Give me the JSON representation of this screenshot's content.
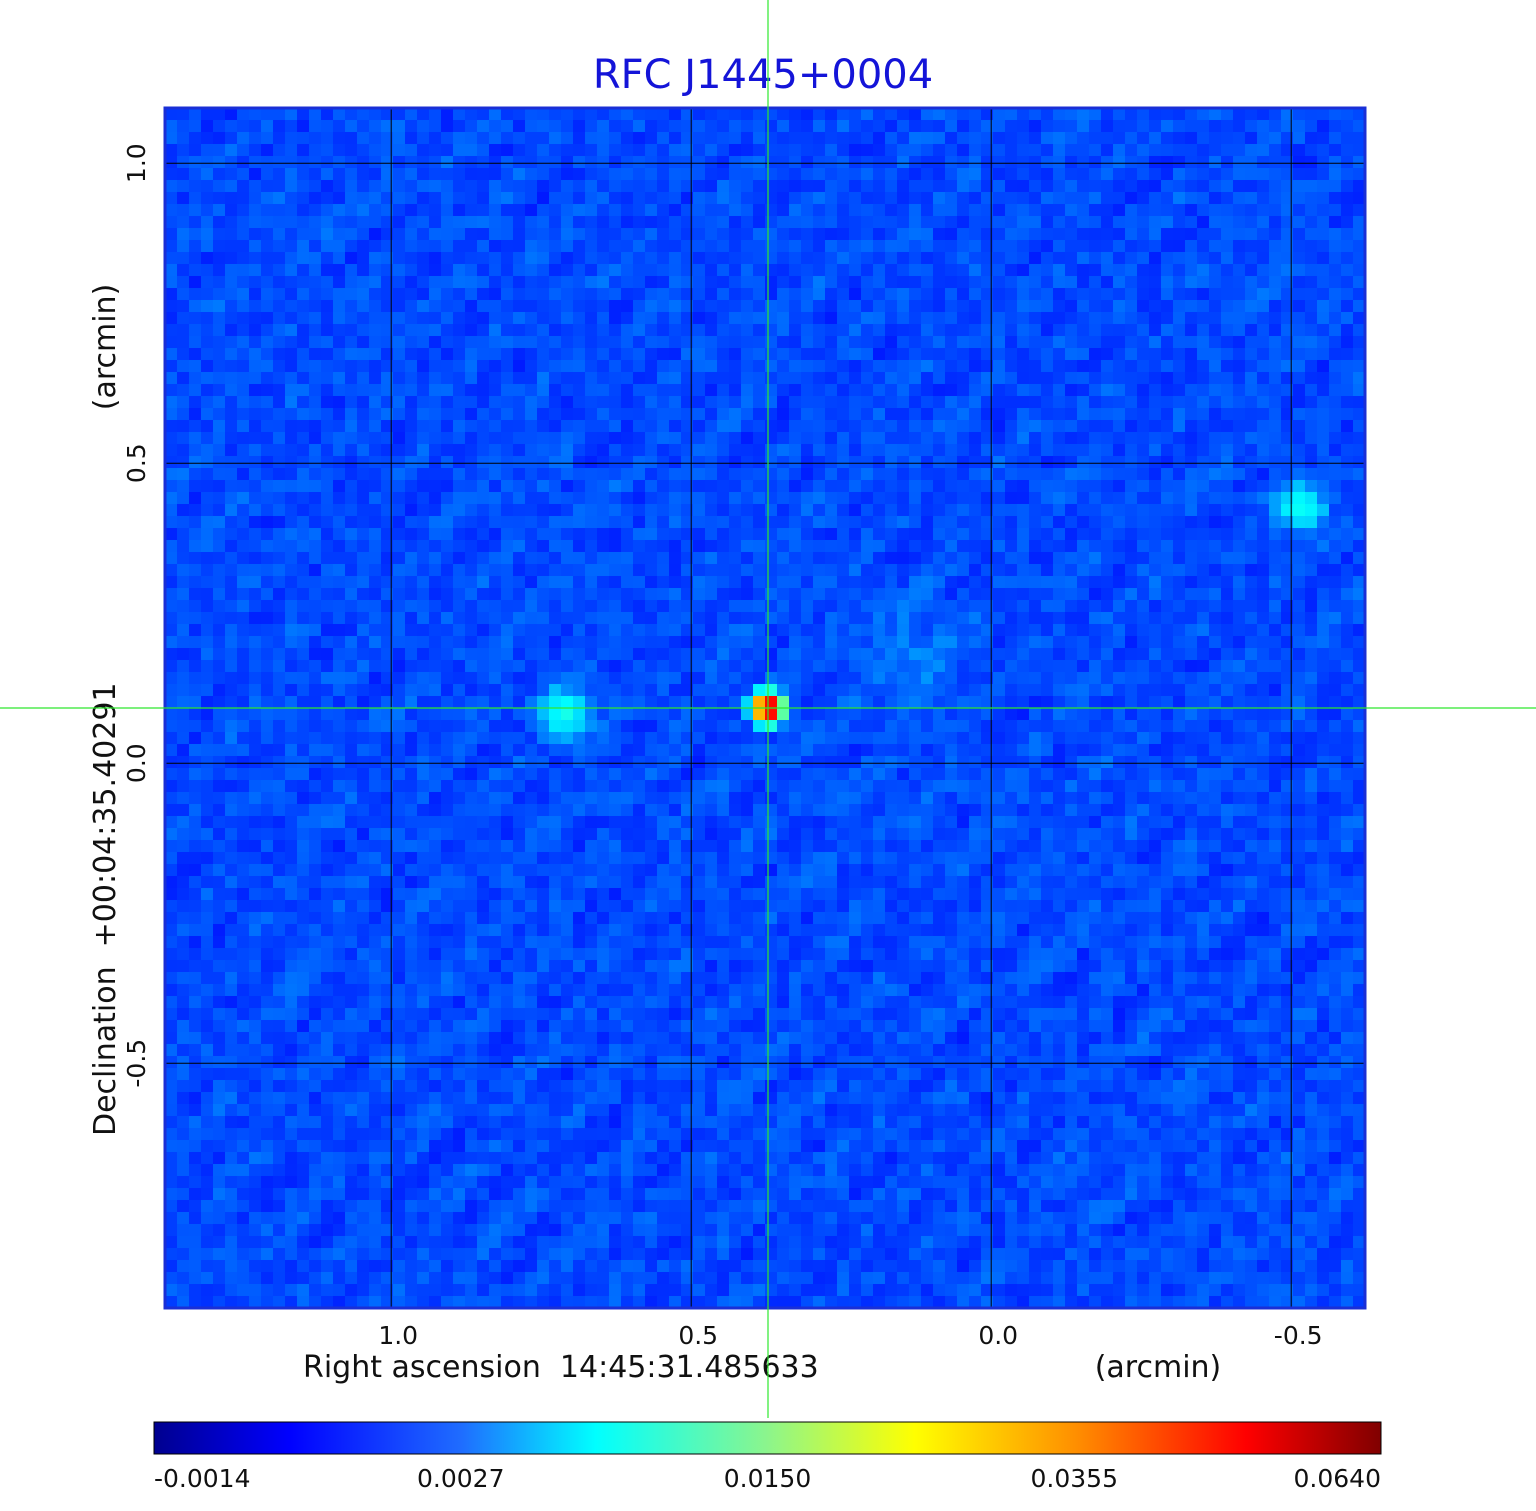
{
  "chart_data": {
    "type": "heatmap",
    "title": "RFC J1445+0004",
    "xlabel": "Right ascension  14:45:31.485633",
    "xunit": "(arcmin)",
    "ylabel": "Declination  +00:04:35.40291",
    "yunit": "(arcmin)",
    "x_ticks": [
      1.0,
      0.5,
      0.0,
      -0.5
    ],
    "y_ticks": [
      1.0,
      0.5,
      0.0,
      -0.5
    ],
    "x_tick_labels": [
      "1.0",
      "0.5",
      "0.0",
      "-0.5"
    ],
    "y_tick_labels": [
      "1.0",
      "0.5",
      "0.0",
      "-0.5"
    ],
    "xlim": [
      1.377,
      -0.623
    ],
    "ylim": [
      -0.908,
      1.092
    ],
    "grid": true,
    "crosshair": {
      "x": 0.372,
      "y": 0.092
    },
    "colorbar": {
      "colormap": "jet",
      "ticks": [
        -0.0014,
        0.0027,
        0.015,
        0.0355,
        0.064
      ],
      "tick_labels": [
        "-0.0014",
        "0.0027",
        "0.0150",
        "0.0355",
        "0.0640"
      ]
    },
    "sources": [
      {
        "x": 0.372,
        "y": 0.092,
        "peak": 0.064
      },
      {
        "x": 0.711,
        "y": 0.083,
        "peak": 0.006
      },
      {
        "x": -0.517,
        "y": 0.425,
        "peak": 0.0055
      },
      {
        "x": 0.133,
        "y": 0.17,
        "peak": 0.0009
      }
    ]
  },
  "colors": {
    "title": "#1414d8",
    "crosshair": "#2ee82e",
    "grid": "#000000"
  }
}
